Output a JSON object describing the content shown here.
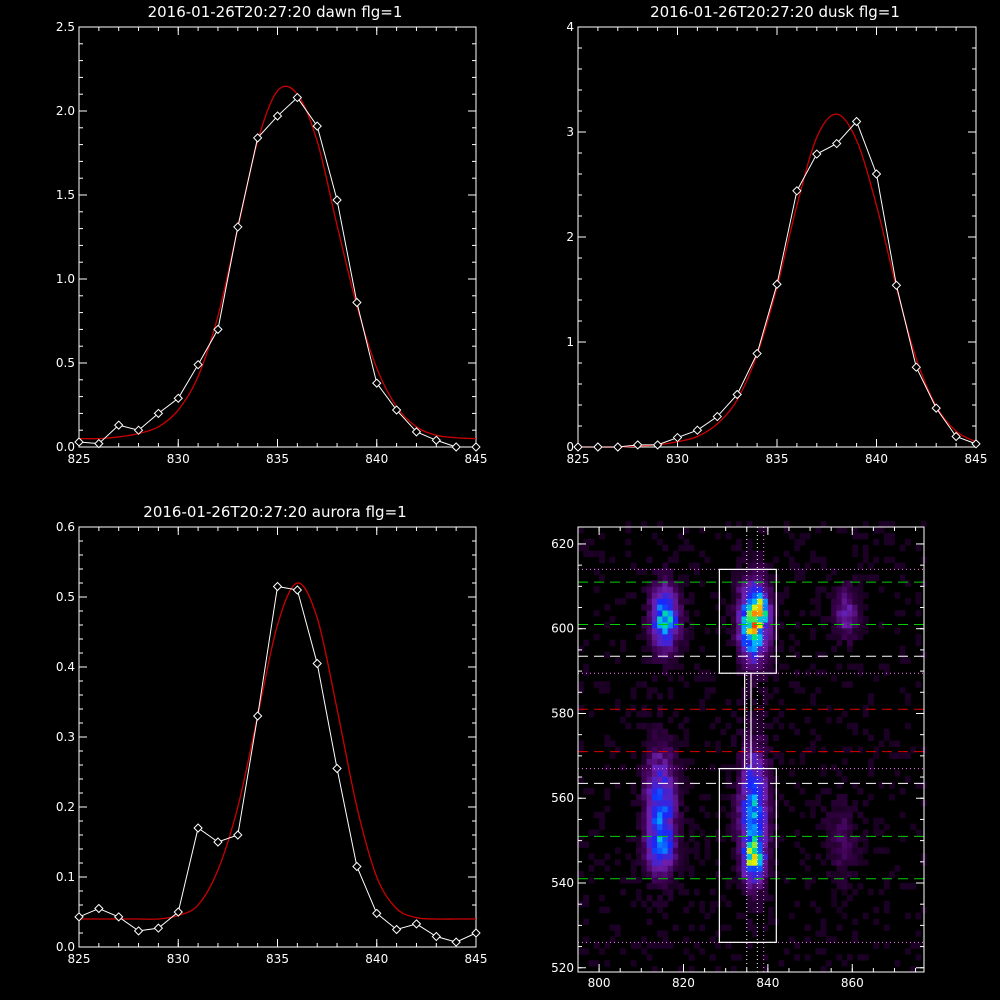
{
  "chart_data": [
    {
      "type": "line",
      "title": "2016-01-26T20:27:20 dawn flg=1",
      "xlim": [
        825,
        845
      ],
      "ylim": [
        0,
        2.5
      ],
      "xticks": [
        "825",
        "830",
        "835",
        "840",
        "845"
      ],
      "yticks": [
        "0.0",
        "0.5",
        "1.0",
        "1.5",
        "2.0",
        "2.5"
      ],
      "x": [
        825,
        826,
        827,
        828,
        829,
        830,
        831,
        832,
        833,
        834,
        835,
        836,
        837,
        838,
        839,
        840,
        841,
        842,
        843,
        844,
        845
      ],
      "series": [
        {
          "values": [
            0.03,
            0.02,
            0.13,
            0.1,
            0.2,
            0.29,
            0.49,
            0.7,
            1.31,
            1.84,
            1.97,
            2.08,
            1.91,
            1.47,
            0.86,
            0.38,
            0.22,
            0.09,
            0.04,
            0.0,
            0.0
          ],
          "color": "#ffffff"
        },
        {
          "values": [
            0.05,
            0.05,
            0.06,
            0.08,
            0.12,
            0.22,
            0.42,
            0.78,
            1.3,
            1.82,
            2.12,
            2.1,
            1.82,
            1.32,
            0.84,
            0.47,
            0.24,
            0.12,
            0.07,
            0.055,
            0.05
          ],
          "color": "#cc0000"
        }
      ]
    },
    {
      "type": "line",
      "title": "2016-01-26T20:27:20 dusk flg=1",
      "xlim": [
        825,
        845
      ],
      "ylim": [
        0,
        4
      ],
      "xticks": [
        "825",
        "830",
        "835",
        "840",
        "845"
      ],
      "yticks": [
        "0",
        "1",
        "2",
        "3",
        "4"
      ],
      "x": [
        825,
        826,
        827,
        828,
        829,
        830,
        831,
        832,
        833,
        834,
        835,
        836,
        837,
        838,
        839,
        840,
        841,
        842,
        843,
        844,
        845
      ],
      "series": [
        {
          "values": [
            0.0,
            0.0,
            0.0,
            0.02,
            0.02,
            0.09,
            0.16,
            0.29,
            0.5,
            0.89,
            1.55,
            2.44,
            2.79,
            2.89,
            3.1,
            2.6,
            1.54,
            0.76,
            0.37,
            0.1,
            0.03
          ],
          "color": "#ffffff"
        },
        {
          "values": [
            0.0,
            0.0,
            0.0,
            0.01,
            0.02,
            0.05,
            0.1,
            0.22,
            0.45,
            0.88,
            1.52,
            2.3,
            2.95,
            3.17,
            2.92,
            2.3,
            1.52,
            0.84,
            0.39,
            0.15,
            0.05
          ],
          "color": "#cc0000"
        }
      ]
    },
    {
      "type": "line",
      "title": "2016-01-26T20:27:20 aurora flg=1",
      "xlim": [
        825,
        845
      ],
      "ylim": [
        0,
        0.6
      ],
      "xticks": [
        "825",
        "830",
        "835",
        "840",
        "845"
      ],
      "yticks": [
        "0.0",
        "0.1",
        "0.2",
        "0.3",
        "0.4",
        "0.5",
        "0.6"
      ],
      "x": [
        825,
        826,
        827,
        828,
        829,
        830,
        831,
        832,
        833,
        834,
        835,
        836,
        837,
        838,
        839,
        840,
        841,
        842,
        843,
        844,
        845
      ],
      "series": [
        {
          "values": [
            0.043,
            0.055,
            0.043,
            0.023,
            0.027,
            0.05,
            0.17,
            0.15,
            0.16,
            0.33,
            0.515,
            0.51,
            0.405,
            0.255,
            0.115,
            0.048,
            0.025,
            0.033,
            0.015,
            0.007,
            0.02
          ],
          "color": "#ffffff"
        },
        {
          "values": [
            0.04,
            0.04,
            0.04,
            0.04,
            0.04,
            0.045,
            0.06,
            0.11,
            0.2,
            0.33,
            0.46,
            0.52,
            0.47,
            0.34,
            0.2,
            0.1,
            0.055,
            0.042,
            0.04,
            0.04,
            0.04
          ],
          "color": "#cc0000"
        }
      ]
    },
    {
      "type": "heatmap",
      "xlim": [
        795,
        877
      ],
      "ylim": [
        519,
        624
      ],
      "xticks": [
        "800",
        "820",
        "840",
        "860"
      ],
      "yticks": [
        "520",
        "540",
        "560",
        "580",
        "600",
        "620"
      ],
      "blobs": [
        {
          "x": 815,
          "y": 602,
          "sx": 2.2,
          "sy": 5,
          "amp": 0.55
        },
        {
          "x": 814,
          "y": 557,
          "sx": 2.4,
          "sy": 9,
          "amp": 0.42
        },
        {
          "x": 814,
          "y": 547,
          "sx": 2.2,
          "sy": 3,
          "amp": 0.25
        },
        {
          "x": 836,
          "y": 601,
          "sx": 2.2,
          "sy": 6,
          "amp": 0.75
        },
        {
          "x": 838,
          "y": 604,
          "sx": 1.2,
          "sy": 2,
          "amp": 0.35
        },
        {
          "x": 836,
          "y": 556,
          "sx": 2.2,
          "sy": 10,
          "amp": 0.48
        },
        {
          "x": 836,
          "y": 545,
          "sx": 1.6,
          "sy": 3,
          "amp": 0.5
        },
        {
          "x": 858,
          "y": 603,
          "sx": 1.8,
          "sy": 4,
          "amp": 0.22
        },
        {
          "x": 857,
          "y": 549,
          "sx": 2.5,
          "sy": 6,
          "amp": 0.1
        }
      ],
      "boxes": [
        {
          "x0": 828.5,
          "x1": 842,
          "y0": 589.5,
          "y1": 614
        },
        {
          "x0": 828.5,
          "x1": 842,
          "y0": 526,
          "y1": 567
        },
        {
          "x0": 834.5,
          "x1": 836,
          "y0": 567,
          "y1": 589.5
        }
      ],
      "dotted_vlines": [
        {
          "x": 835,
          "color": "#ffffff"
        },
        {
          "x": 837.5,
          "color": "#ffffff"
        },
        {
          "x": 839,
          "color": "#ff77ff"
        }
      ],
      "dotted_hlines": [
        {
          "y": 614,
          "color": "#ff77ff"
        },
        {
          "y": 589.5,
          "color": "#ff77ff"
        },
        {
          "y": 567,
          "color": "#ff77ff"
        },
        {
          "y": 526,
          "color": "#ff77ff"
        }
      ],
      "dashed_hlines": [
        {
          "y": 611,
          "color": "#00cc00"
        },
        {
          "y": 601,
          "color": "#00cc00"
        },
        {
          "y": 593.5,
          "color": "#ffffff"
        },
        {
          "y": 581,
          "color": "#dd0000"
        },
        {
          "y": 571,
          "color": "#dd0000"
        },
        {
          "y": 563.5,
          "color": "#ffffff"
        },
        {
          "y": 551,
          "color": "#00cc00"
        },
        {
          "y": 541,
          "color": "#00cc00"
        }
      ]
    }
  ]
}
